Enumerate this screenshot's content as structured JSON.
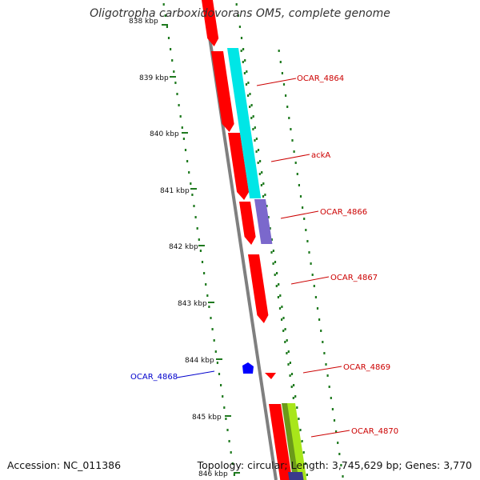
{
  "title": "Oligotropha carboxidovorans OM5, complete genome",
  "footer": {
    "accession": "Accession: NC_011386",
    "summary": "Topology: circular; Length: 3,745,629 bp; Genes: 3,770"
  },
  "colors": {
    "backbone": "#7f7f7f",
    "tick": "#1f7a1f",
    "gene_red": "#ff0000",
    "label_red": "#cc0000",
    "label_blue": "#0000cc",
    "cyan": "#00e6e6",
    "purple": "#7b68cc",
    "lime": "#a8e61a",
    "olive": "#6b9a1a",
    "navy": "#3a3a8c",
    "blue": "#0000ff"
  },
  "ruler": [
    {
      "label": "838 kbp"
    },
    {
      "label": "839 kbp"
    },
    {
      "label": "840 kbp"
    },
    {
      "label": "841 kbp"
    },
    {
      "label": "842 kbp"
    },
    {
      "label": "843 kbp"
    },
    {
      "label": "844 kbp"
    },
    {
      "label": "845 kbp"
    },
    {
      "label": "846 kbp"
    }
  ],
  "gene_labels": [
    {
      "name": "OCAR_4864",
      "color": "red"
    },
    {
      "name": "ackA",
      "color": "red"
    },
    {
      "name": "OCAR_4866",
      "color": "red"
    },
    {
      "name": "OCAR_4867",
      "color": "red"
    },
    {
      "name": "OCAR_4868",
      "color": "blue"
    },
    {
      "name": "OCAR_4869",
      "color": "red"
    },
    {
      "name": "OCAR_4870",
      "color": "red"
    }
  ]
}
